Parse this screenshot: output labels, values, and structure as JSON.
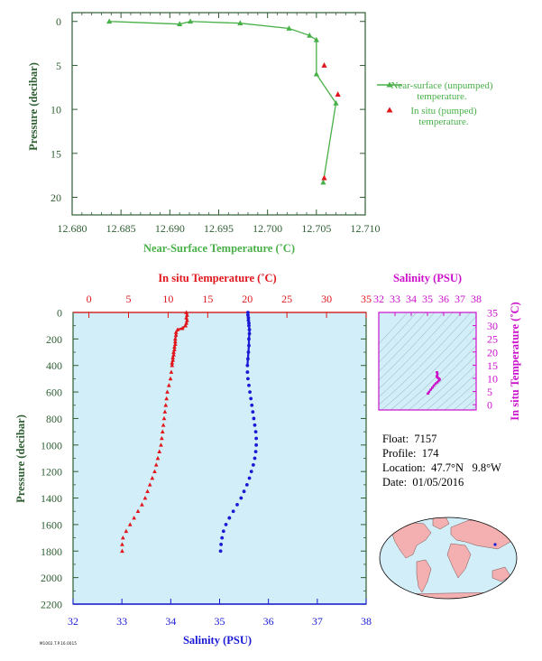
{
  "colors": {
    "green": "#48b048",
    "axis_green": "#2e5e32",
    "red": "#e0161c",
    "blue": "#1a1ad6",
    "magenta": "#cc10cc",
    "panel_bg": "#d2eef8",
    "land": "#f4b0b0",
    "ocean": "#d2eef8"
  },
  "float_info": {
    "float_label": "Float:",
    "float_value": "7157",
    "profile_label": "Profile:",
    "profile_value": "174",
    "location_label": "Location:",
    "location_lat": "47.7°N",
    "location_lon": "9.8°W",
    "date_label": "Date:",
    "date_value": "01/05/2016"
  },
  "footer_stamp": "M1002.T.P.16.0015",
  "chart_data": [
    {
      "id": "near-surface",
      "type": "scatter",
      "xlabel": "Near-Surface Temperature (˚C)",
      "ylabel": "Pressure (decibar)",
      "xlim": [
        12.68,
        12.71
      ],
      "ylim": [
        22,
        -1
      ],
      "x_ticks": [
        "12.680",
        "12.685",
        "12.690",
        "12.695",
        "12.700",
        "12.705",
        "12.710"
      ],
      "y_ticks": [
        "0",
        "5",
        "10",
        "15",
        "20"
      ],
      "grid": false,
      "legend": {
        "position": "right",
        "items": [
          {
            "label_line1": "Near-surface (unpumped)",
            "label_line2": "temperature."
          },
          {
            "label_line1": "In situ (pumped)",
            "label_line2": "temperature."
          }
        ]
      },
      "series": [
        {
          "name": "Near-surface (unpumped) temperature.",
          "marker": "triangle-line",
          "points": [
            [
              12.6838,
              0.0
            ],
            [
              12.691,
              0.3
            ],
            [
              12.6921,
              0.0
            ],
            [
              12.6972,
              0.2
            ],
            [
              12.7022,
              0.8
            ],
            [
              12.7043,
              1.6
            ],
            [
              12.705,
              2.1
            ],
            [
              12.705,
              6.0
            ],
            [
              12.707,
              9.3
            ],
            [
              12.7057,
              18.3
            ]
          ]
        },
        {
          "name": "In situ (pumped) temperature.",
          "marker": "triangle",
          "points": [
            [
              12.7058,
              5.0
            ],
            [
              12.7072,
              8.3
            ],
            [
              12.7058,
              17.8
            ]
          ]
        }
      ]
    },
    {
      "id": "profile",
      "type": "scatter",
      "ylabel": "Pressure (decibar)",
      "ylim": [
        2200,
        0
      ],
      "y_ticks": [
        "0",
        "200",
        "400",
        "600",
        "800",
        "1000",
        "1200",
        "1400",
        "1600",
        "1800",
        "2000",
        "2200"
      ],
      "top_axis": {
        "label": "In situ Temperature (˚C)",
        "range": [
          -2,
          35
        ],
        "ticks": [
          "0",
          "5",
          "10",
          "15",
          "20",
          "25",
          "30",
          "35"
        ]
      },
      "bottom_axis": {
        "label": "Salinity (PSU)",
        "range": [
          32,
          38
        ],
        "ticks": [
          "32",
          "33",
          "34",
          "35",
          "36",
          "37",
          "38"
        ]
      },
      "series": [
        {
          "name": "Temperature",
          "axis": "top",
          "marker": "triangle",
          "points": [
            [
              12.3,
              0
            ],
            [
              12.4,
              20
            ],
            [
              12.3,
              40
            ],
            [
              12.4,
              60
            ],
            [
              12.3,
              80
            ],
            [
              12.2,
              100
            ],
            [
              11.8,
              120
            ],
            [
              11.2,
              130
            ],
            [
              11.0,
              150
            ],
            [
              11.0,
              170
            ],
            [
              10.9,
              200
            ],
            [
              10.9,
              220
            ],
            [
              10.9,
              240
            ],
            [
              10.8,
              260
            ],
            [
              10.8,
              280
            ],
            [
              10.7,
              300
            ],
            [
              10.7,
              320
            ],
            [
              10.6,
              340
            ],
            [
              10.6,
              360
            ],
            [
              10.5,
              380
            ],
            [
              10.5,
              400
            ],
            [
              10.4,
              450
            ],
            [
              10.3,
              500
            ],
            [
              10.1,
              550
            ],
            [
              9.9,
              600
            ],
            [
              9.8,
              650
            ],
            [
              9.7,
              700
            ],
            [
              9.6,
              750
            ],
            [
              9.5,
              800
            ],
            [
              9.4,
              850
            ],
            [
              9.3,
              900
            ],
            [
              9.2,
              950
            ],
            [
              9.1,
              1000
            ],
            [
              8.9,
              1050
            ],
            [
              8.7,
              1100
            ],
            [
              8.5,
              1150
            ],
            [
              8.3,
              1200
            ],
            [
              8.0,
              1250
            ],
            [
              7.7,
              1300
            ],
            [
              7.4,
              1350
            ],
            [
              7.1,
              1400
            ],
            [
              6.7,
              1450
            ],
            [
              6.2,
              1500
            ],
            [
              5.7,
              1550
            ],
            [
              5.2,
              1600
            ],
            [
              4.7,
              1650
            ],
            [
              4.3,
              1700
            ],
            [
              4.2,
              1750
            ],
            [
              4.2,
              1800
            ]
          ]
        },
        {
          "name": "Salinity",
          "axis": "bottom",
          "marker": "dot",
          "points": [
            [
              35.58,
              0
            ],
            [
              35.58,
              20
            ],
            [
              35.59,
              40
            ],
            [
              35.59,
              60
            ],
            [
              35.6,
              80
            ],
            [
              35.6,
              100
            ],
            [
              35.61,
              130
            ],
            [
              35.61,
              160
            ],
            [
              35.6,
              200
            ],
            [
              35.6,
              250
            ],
            [
              35.59,
              300
            ],
            [
              35.58,
              350
            ],
            [
              35.57,
              400
            ],
            [
              35.57,
              450
            ],
            [
              35.58,
              500
            ],
            [
              35.6,
              550
            ],
            [
              35.62,
              600
            ],
            [
              35.64,
              650
            ],
            [
              35.66,
              700
            ],
            [
              35.68,
              750
            ],
            [
              35.7,
              800
            ],
            [
              35.72,
              850
            ],
            [
              35.74,
              900
            ],
            [
              35.75,
              950
            ],
            [
              35.75,
              1000
            ],
            [
              35.74,
              1050
            ],
            [
              35.72,
              1100
            ],
            [
              35.69,
              1150
            ],
            [
              35.65,
              1200
            ],
            [
              35.61,
              1250
            ],
            [
              35.56,
              1300
            ],
            [
              35.5,
              1350
            ],
            [
              35.44,
              1400
            ],
            [
              35.36,
              1450
            ],
            [
              35.28,
              1500
            ],
            [
              35.2,
              1550
            ],
            [
              35.13,
              1600
            ],
            [
              35.08,
              1650
            ],
            [
              35.05,
              1700
            ],
            [
              35.03,
              1750
            ],
            [
              35.02,
              1800
            ]
          ]
        }
      ]
    },
    {
      "id": "ts-diagram",
      "type": "scatter",
      "top_axis": {
        "label": "Salinity (PSU)",
        "range": [
          32,
          38
        ],
        "ticks": [
          "32",
          "33",
          "34",
          "35",
          "36",
          "37",
          "38"
        ]
      },
      "right_axis": {
        "label": "In situ Temperature (˚C)",
        "range": [
          -2,
          35
        ],
        "ticks": [
          "0",
          "5",
          "10",
          "15",
          "20",
          "25",
          "30",
          "35"
        ]
      },
      "series": [
        {
          "name": "T-S profile",
          "marker": "dot",
          "points": [
            [
              35.02,
              4.2
            ],
            [
              35.05,
              4.3
            ],
            [
              35.1,
              4.9
            ],
            [
              35.2,
              5.7
            ],
            [
              35.3,
              6.5
            ],
            [
              35.4,
              7.3
            ],
            [
              35.5,
              8.0
            ],
            [
              35.6,
              8.5
            ],
            [
              35.68,
              9.0
            ],
            [
              35.74,
              9.4
            ],
            [
              35.75,
              9.7
            ],
            [
              35.7,
              10.0
            ],
            [
              35.64,
              10.2
            ],
            [
              35.59,
              10.5
            ],
            [
              35.57,
              10.7
            ],
            [
              35.58,
              10.9
            ],
            [
              35.6,
              11.0
            ],
            [
              35.61,
              11.8
            ],
            [
              35.6,
              12.2
            ],
            [
              35.58,
              12.3
            ]
          ]
        }
      ]
    },
    {
      "id": "location-map",
      "type": "scatter",
      "series": [
        {
          "name": "Float location",
          "points": [
            [
              -9.8,
              47.7
            ]
          ]
        }
      ]
    }
  ]
}
